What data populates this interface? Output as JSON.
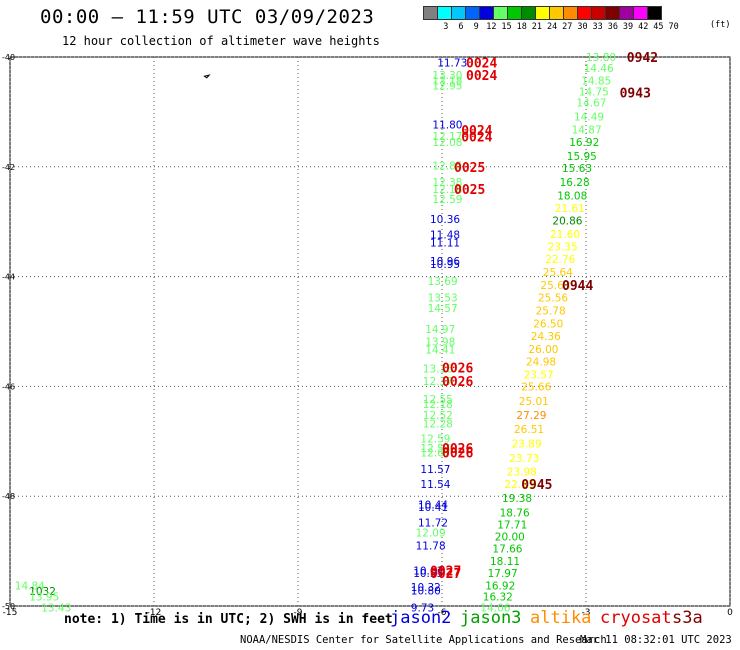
{
  "header": {
    "title": "00:00 – 11:59 UTC 03/09/2023",
    "subtitle": "12 hour collection of altimeter wave heights",
    "scale_unit": "(ft)",
    "scale": [
      {
        "label": "",
        "color": "#808080"
      },
      {
        "label": "3",
        "color": "#00ffff"
      },
      {
        "label": "6",
        "color": "#00c8ff"
      },
      {
        "label": "9",
        "color": "#0064ff"
      },
      {
        "label": "12",
        "color": "#0000dc"
      },
      {
        "label": "15",
        "color": "#64ff64"
      },
      {
        "label": "18",
        "color": "#00c800"
      },
      {
        "label": "21",
        "color": "#008c00"
      },
      {
        "label": "24",
        "color": "#ffff00"
      },
      {
        "label": "27",
        "color": "#ffc800"
      },
      {
        "label": "30",
        "color": "#ff8c00"
      },
      {
        "label": "33",
        "color": "#ff0000"
      },
      {
        "label": "36",
        "color": "#c80000"
      },
      {
        "label": "39",
        "color": "#800000"
      },
      {
        "label": "42",
        "color": "#a000a0"
      },
      {
        "label": "45",
        "color": "#ff00ff"
      },
      {
        "label": "70",
        "color": "#000000"
      }
    ]
  },
  "footer": {
    "note": "note: 1) Time is in UTC; 2) SWH is in feet",
    "credit": "NOAA/NESDIS Center for Satellite Applications and Research",
    "generated": "Mar 11 08:32:01 UTC 2023",
    "legend": [
      {
        "name": "jason2",
        "color": "#0000dc"
      },
      {
        "name": "jason3",
        "color": "#00a000"
      },
      {
        "name": "altika",
        "color": "#ff8c00"
      },
      {
        "name": "cryosat",
        "color": "#e00000"
      },
      {
        "name": "s3a",
        "color": "#800000"
      }
    ]
  },
  "chart_data": {
    "type": "scatter",
    "title": "00:00 – 11:59 UTC 03/09/2023",
    "xlim": [
      -15,
      0
    ],
    "ylim": [
      -50,
      -40
    ],
    "x_ticks": [
      -15,
      -12,
      -9,
      -6,
      -3,
      0
    ],
    "y_ticks": [
      -40,
      -42,
      -44,
      -46,
      -48,
      -50
    ],
    "grid": true,
    "coastline": [
      [
        -10.95,
        -40.35
      ],
      [
        -10.9,
        -40.38
      ],
      [
        -10.85,
        -40.33
      ]
    ],
    "colors": {
      "c15": "#64ff64",
      "c18": "#00c800",
      "c21": "#008c00",
      "c24": "#ffff00",
      "c27": "#ffc800",
      "c30": "#ff8c00",
      "c12": "#0000dc",
      "time_red": "#e00000",
      "time_dark": "#800000"
    },
    "points": [
      {
        "x": -6.1,
        "y": -40.1,
        "text": "11.73",
        "c": "c12"
      },
      {
        "x": -6.2,
        "y": -40.33,
        "text": "13.30",
        "c": "c15"
      },
      {
        "x": -6.2,
        "y": -40.43,
        "text": "13.18",
        "c": "c15"
      },
      {
        "x": -6.2,
        "y": -40.52,
        "text": "12.95",
        "c": "c15"
      },
      {
        "x": -6.2,
        "y": -41.23,
        "text": "11.80",
        "c": "c12"
      },
      {
        "x": -6.2,
        "y": -41.44,
        "text": "12.17",
        "c": "c15"
      },
      {
        "x": -6.2,
        "y": -41.55,
        "text": "12.08",
        "c": "c15"
      },
      {
        "x": -6.2,
        "y": -41.98,
        "text": "12.85",
        "c": "c15"
      },
      {
        "x": -6.2,
        "y": -42.28,
        "text": "12.38",
        "c": "c15"
      },
      {
        "x": -6.2,
        "y": -42.4,
        "text": "12.18",
        "c": "c15"
      },
      {
        "x": -6.2,
        "y": -42.59,
        "text": "12.59",
        "c": "c15"
      },
      {
        "x": -6.25,
        "y": -42.95,
        "text": "10.36",
        "c": "c12"
      },
      {
        "x": -6.25,
        "y": -43.23,
        "text": "11.48",
        "c": "c12"
      },
      {
        "x": -6.25,
        "y": -43.38,
        "text": "11.11",
        "c": "c12"
      },
      {
        "x": -6.25,
        "y": -43.72,
        "text": "10.96",
        "c": "c12"
      },
      {
        "x": -6.25,
        "y": -43.77,
        "text": "10.95",
        "c": "c12"
      },
      {
        "x": -6.3,
        "y": -44.08,
        "text": "13.69",
        "c": "c15"
      },
      {
        "x": -6.3,
        "y": -44.38,
        "text": "13.53",
        "c": "c15"
      },
      {
        "x": -6.3,
        "y": -44.57,
        "text": "14.57",
        "c": "c15"
      },
      {
        "x": -6.35,
        "y": -44.95,
        "text": "14.97",
        "c": "c15"
      },
      {
        "x": -6.35,
        "y": -45.18,
        "text": "13.98",
        "c": "c15"
      },
      {
        "x": -6.35,
        "y": -45.33,
        "text": "14.41",
        "c": "c15"
      },
      {
        "x": -6.4,
        "y": -45.67,
        "text": "13.16",
        "c": "c15"
      },
      {
        "x": -6.4,
        "y": -45.9,
        "text": "12.37",
        "c": "c15"
      },
      {
        "x": -6.4,
        "y": -46.23,
        "text": "12.55",
        "c": "c15"
      },
      {
        "x": -6.4,
        "y": -46.32,
        "text": "12.18",
        "c": "c15"
      },
      {
        "x": -6.4,
        "y": -46.52,
        "text": "12.52",
        "c": "c15"
      },
      {
        "x": -6.4,
        "y": -46.68,
        "text": "12.28",
        "c": "c15"
      },
      {
        "x": -6.45,
        "y": -46.95,
        "text": "12.59",
        "c": "c15"
      },
      {
        "x": -6.45,
        "y": -47.12,
        "text": "12.57",
        "c": "c15"
      },
      {
        "x": -6.45,
        "y": -47.2,
        "text": "12.67",
        "c": "c15"
      },
      {
        "x": -6.45,
        "y": -47.5,
        "text": "11.57",
        "c": "c12"
      },
      {
        "x": -6.45,
        "y": -47.78,
        "text": "11.54",
        "c": "c12"
      },
      {
        "x": -6.5,
        "y": -48.15,
        "text": "10.44",
        "c": "c12"
      },
      {
        "x": -6.5,
        "y": -48.2,
        "text": "10.41",
        "c": "c12"
      },
      {
        "x": -6.5,
        "y": -48.48,
        "text": "11.72",
        "c": "c12"
      },
      {
        "x": -6.55,
        "y": -48.66,
        "text": "12.09",
        "c": "c15"
      },
      {
        "x": -6.55,
        "y": -48.9,
        "text": "11.78",
        "c": "c12"
      },
      {
        "x": -6.6,
        "y": -49.35,
        "text": "10.63",
        "c": "c12"
      },
      {
        "x": -6.6,
        "y": -49.4,
        "text": "10.55",
        "c": "c12"
      },
      {
        "x": -6.65,
        "y": -49.65,
        "text": "10.32",
        "c": "c12"
      },
      {
        "x": -6.65,
        "y": -49.72,
        "text": "10.80",
        "c": "c12"
      },
      {
        "x": -6.65,
        "y": -50.03,
        "text": "9.73",
        "c": "c12"
      },
      {
        "x": -3.0,
        "y": -40.0,
        "text": "13.80",
        "c": "c15"
      },
      {
        "x": -3.05,
        "y": -40.2,
        "text": "14.46",
        "c": "c15"
      },
      {
        "x": -3.1,
        "y": -40.43,
        "text": "14.85",
        "c": "c15"
      },
      {
        "x": -3.15,
        "y": -40.63,
        "text": "14.75",
        "c": "c15"
      },
      {
        "x": -3.2,
        "y": -40.83,
        "text": "14.67",
        "c": "c15"
      },
      {
        "x": -3.25,
        "y": -41.08,
        "text": "14.49",
        "c": "c15"
      },
      {
        "x": -3.3,
        "y": -41.32,
        "text": "14.87",
        "c": "c15"
      },
      {
        "x": -3.35,
        "y": -41.55,
        "text": "16.92",
        "c": "c18"
      },
      {
        "x": -3.4,
        "y": -41.8,
        "text": "15.95",
        "c": "c18"
      },
      {
        "x": -3.5,
        "y": -42.02,
        "text": "15.63",
        "c": "c18"
      },
      {
        "x": -3.55,
        "y": -42.28,
        "text": "16.28",
        "c": "c18"
      },
      {
        "x": -3.6,
        "y": -42.52,
        "text": "18.08",
        "c": "c18"
      },
      {
        "x": -3.65,
        "y": -42.75,
        "text": "21.61",
        "c": "c24"
      },
      {
        "x": -3.7,
        "y": -42.98,
        "text": "20.86",
        "c": "c21"
      },
      {
        "x": -3.75,
        "y": -43.22,
        "text": "21.60",
        "c": "c24"
      },
      {
        "x": -3.8,
        "y": -43.45,
        "text": "23.35",
        "c": "c24"
      },
      {
        "x": -3.85,
        "y": -43.68,
        "text": "22.76",
        "c": "c24"
      },
      {
        "x": -3.9,
        "y": -43.92,
        "text": "25.64",
        "c": "c27"
      },
      {
        "x": -3.95,
        "y": -44.15,
        "text": "25.63",
        "c": "c27"
      },
      {
        "x": -4.0,
        "y": -44.38,
        "text": "25.56",
        "c": "c27"
      },
      {
        "x": -4.05,
        "y": -44.62,
        "text": "25.78",
        "c": "c27"
      },
      {
        "x": -4.1,
        "y": -44.85,
        "text": "26.50",
        "c": "c27"
      },
      {
        "x": -4.15,
        "y": -45.08,
        "text": "24.36",
        "c": "c27"
      },
      {
        "x": -4.2,
        "y": -45.32,
        "text": "26.00",
        "c": "c27"
      },
      {
        "x": -4.25,
        "y": -45.55,
        "text": "24.98",
        "c": "c27"
      },
      {
        "x": -4.3,
        "y": -45.78,
        "text": "23.57",
        "c": "c24"
      },
      {
        "x": -4.35,
        "y": -46.0,
        "text": "25.66",
        "c": "c27"
      },
      {
        "x": -4.4,
        "y": -46.27,
        "text": "25.01",
        "c": "c27"
      },
      {
        "x": -4.45,
        "y": -46.52,
        "text": "27.29",
        "c": "c30"
      },
      {
        "x": -4.5,
        "y": -46.78,
        "text": "26.51",
        "c": "c27"
      },
      {
        "x": -4.55,
        "y": -47.04,
        "text": "23.89",
        "c": "c24"
      },
      {
        "x": -4.6,
        "y": -47.3,
        "text": "23.73",
        "c": "c24"
      },
      {
        "x": -4.65,
        "y": -47.55,
        "text": "23.98",
        "c": "c24"
      },
      {
        "x": -4.7,
        "y": -47.78,
        "text": "22.13",
        "c": "c24"
      },
      {
        "x": -4.75,
        "y": -48.03,
        "text": "19.38",
        "c": "c18"
      },
      {
        "x": -4.8,
        "y": -48.3,
        "text": "18.76",
        "c": "c18"
      },
      {
        "x": -4.85,
        "y": -48.52,
        "text": "17.71",
        "c": "c18"
      },
      {
        "x": -4.9,
        "y": -48.73,
        "text": "20.00",
        "c": "c18"
      },
      {
        "x": -4.95,
        "y": -48.95,
        "text": "17.66",
        "c": "c18"
      },
      {
        "x": -5.0,
        "y": -49.18,
        "text": "18.11",
        "c": "c18"
      },
      {
        "x": -5.05,
        "y": -49.4,
        "text": "17.97",
        "c": "c18"
      },
      {
        "x": -5.1,
        "y": -49.63,
        "text": "16.92",
        "c": "c18"
      },
      {
        "x": -5.15,
        "y": -49.83,
        "text": "16.32",
        "c": "c18"
      },
      {
        "x": -5.2,
        "y": -50.03,
        "text": "14.06",
        "c": "c15"
      },
      {
        "x": -14.9,
        "y": -49.63,
        "text": "14.84",
        "c": "c15"
      },
      {
        "x": -14.6,
        "y": -49.73,
        "text": "1032",
        "c": "c21"
      },
      {
        "x": -14.6,
        "y": -49.83,
        "text": "13.95",
        "c": "c15"
      },
      {
        "x": -14.35,
        "y": -50.03,
        "text": "13.43",
        "c": "c15"
      }
    ],
    "time_labels": [
      {
        "x": -5.5,
        "y": -40.1,
        "text": "0024",
        "c": "time_red"
      },
      {
        "x": -5.5,
        "y": -40.33,
        "text": "0024",
        "c": "time_red"
      },
      {
        "x": -5.6,
        "y": -41.33,
        "text": "0024",
        "c": "time_red"
      },
      {
        "x": -5.6,
        "y": -41.45,
        "text": "0024",
        "c": "time_red"
      },
      {
        "x": -5.75,
        "y": -42.0,
        "text": "0025",
        "c": "time_red"
      },
      {
        "x": -5.75,
        "y": -42.4,
        "text": "0025",
        "c": "time_red"
      },
      {
        "x": -6.0,
        "y": -45.66,
        "text": "0026",
        "c": "time_red"
      },
      {
        "x": -6.0,
        "y": -45.9,
        "text": "0026",
        "c": "time_red"
      },
      {
        "x": -6.0,
        "y": -47.12,
        "text": "0026",
        "c": "time_red"
      },
      {
        "x": -6.0,
        "y": -47.2,
        "text": "0026",
        "c": "time_red"
      },
      {
        "x": -6.25,
        "y": -49.35,
        "text": "0027",
        "c": "time_red"
      },
      {
        "x": -6.25,
        "y": -49.4,
        "text": "0027",
        "c": "time_red"
      },
      {
        "x": -2.15,
        "y": -40.0,
        "text": "0942",
        "c": "time_dark"
      },
      {
        "x": -2.3,
        "y": -40.65,
        "text": "0943",
        "c": "time_dark"
      },
      {
        "x": -3.5,
        "y": -44.15,
        "text": "0944",
        "c": "time_dark"
      },
      {
        "x": -4.35,
        "y": -47.78,
        "text": "0945",
        "c": "time_dark"
      }
    ]
  }
}
